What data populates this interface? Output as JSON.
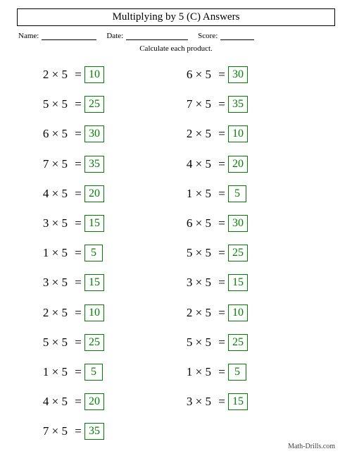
{
  "title": "Multiplying by 5 (C) Answers",
  "meta": {
    "name_label": "Name:",
    "date_label": "Date:",
    "score_label": "Score:"
  },
  "instruction": "Calculate each product.",
  "colors": {
    "answer_border": "#008000",
    "answer_text": "#008000",
    "page_bg": "#ffffff"
  },
  "font_sizes": {
    "title": 15,
    "meta": 11,
    "instruction": 11,
    "problem": 17
  },
  "problems": {
    "left": [
      {
        "a": 2,
        "b": 5,
        "ans": 10
      },
      {
        "a": 5,
        "b": 5,
        "ans": 25
      },
      {
        "a": 6,
        "b": 5,
        "ans": 30
      },
      {
        "a": 7,
        "b": 5,
        "ans": 35
      },
      {
        "a": 4,
        "b": 5,
        "ans": 20
      },
      {
        "a": 3,
        "b": 5,
        "ans": 15
      },
      {
        "a": 1,
        "b": 5,
        "ans": 5
      },
      {
        "a": 3,
        "b": 5,
        "ans": 15
      },
      {
        "a": 2,
        "b": 5,
        "ans": 10
      },
      {
        "a": 5,
        "b": 5,
        "ans": 25
      },
      {
        "a": 1,
        "b": 5,
        "ans": 5
      },
      {
        "a": 4,
        "b": 5,
        "ans": 20
      },
      {
        "a": 7,
        "b": 5,
        "ans": 35
      }
    ],
    "right": [
      {
        "a": 6,
        "b": 5,
        "ans": 30
      },
      {
        "a": 7,
        "b": 5,
        "ans": 35
      },
      {
        "a": 2,
        "b": 5,
        "ans": 10
      },
      {
        "a": 4,
        "b": 5,
        "ans": 20
      },
      {
        "a": 1,
        "b": 5,
        "ans": 5
      },
      {
        "a": 6,
        "b": 5,
        "ans": 30
      },
      {
        "a": 5,
        "b": 5,
        "ans": 25
      },
      {
        "a": 3,
        "b": 5,
        "ans": 15
      },
      {
        "a": 2,
        "b": 5,
        "ans": 10
      },
      {
        "a": 5,
        "b": 5,
        "ans": 25
      },
      {
        "a": 1,
        "b": 5,
        "ans": 5
      },
      {
        "a": 3,
        "b": 5,
        "ans": 15
      }
    ]
  },
  "footer": "Math-Drills.com"
}
